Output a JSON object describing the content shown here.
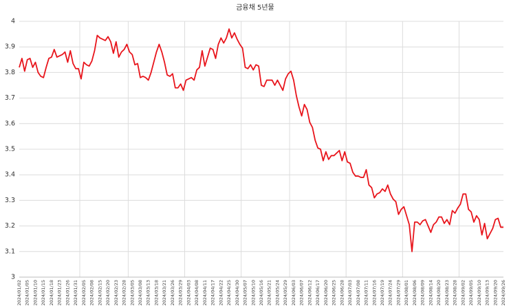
{
  "chart_data": {
    "type": "line",
    "title": "금융채 5년물",
    "color": "#e8141b",
    "grid": true,
    "ylim": [
      3,
      4
    ],
    "yticks": [
      3,
      3.1,
      3.2,
      3.3,
      3.4,
      3.5,
      3.6,
      3.7,
      3.8,
      3.9,
      4
    ],
    "categories": [
      "2024/01/02",
      null,
      null,
      "2024/01/05",
      null,
      null,
      "2024/01/10",
      null,
      null,
      "2024/01/15",
      null,
      null,
      "2024/01/18",
      null,
      null,
      "2024/01/23",
      null,
      null,
      "2024/01/26",
      null,
      null,
      "2024/01/31",
      null,
      null,
      "2024/02/05",
      null,
      null,
      "2024/02/08",
      null,
      null,
      "2024/02/15",
      null,
      null,
      "2024/02/20",
      null,
      null,
      "2024/02/23",
      null,
      null,
      "2024/02/28",
      null,
      null,
      "2024/03/05",
      null,
      null,
      "2024/03/08",
      null,
      null,
      "2024/03/13",
      null,
      null,
      "2024/03/18",
      null,
      null,
      "2024/03/21",
      null,
      null,
      "2024/03/26",
      null,
      null,
      "2024/03/29",
      null,
      null,
      "2024/04/03",
      null,
      null,
      "2024/04/08",
      null,
      null,
      "2024/04/11",
      null,
      null,
      "2024/04/17",
      null,
      null,
      "2024/04/22",
      null,
      null,
      "2024/04/25",
      null,
      null,
      "2024/04/30",
      null,
      null,
      "2024/05/07",
      null,
      null,
      "2024/05/10",
      null,
      null,
      "2024/05/16",
      null,
      null,
      "2024/05/21",
      null,
      null,
      "2024/05/24",
      null,
      null,
      "2024/05/29",
      null,
      null,
      "2024/06/03",
      null,
      null,
      "2024/06/07",
      null,
      null,
      "2024/06/12",
      null,
      null,
      "2024/06/17",
      null,
      null,
      "2024/06/20",
      null,
      null,
      "2024/06/25",
      null,
      null,
      "2024/06/28",
      null,
      null,
      "2024/07/03",
      null,
      null,
      "2024/07/08",
      null,
      null,
      "2024/07/11",
      null,
      null,
      "2024/07/16",
      null,
      null,
      "2024/07/19",
      null,
      null,
      "2024/07/24",
      null,
      null,
      "2024/07/29",
      null,
      null,
      "2024/08/01",
      null,
      null,
      "2024/08/06",
      null,
      null,
      "2024/08/09",
      null,
      null,
      "2024/08/14",
      null,
      null,
      "2024/08/20",
      null,
      null,
      "2024/08/23",
      null,
      null,
      "2024/08/28",
      null,
      null,
      "2024/09/02",
      null,
      null,
      "2024/09/05",
      null,
      null,
      "2024/09/10",
      null,
      null,
      "2024/09/13",
      null,
      null,
      "2024/09/20",
      null,
      null,
      "2024/09/26"
    ],
    "values": [
      3.82,
      3.855,
      3.805,
      3.85,
      3.855,
      3.82,
      3.84,
      3.8,
      3.785,
      3.78,
      3.82,
      3.855,
      3.86,
      3.89,
      3.86,
      3.865,
      3.87,
      3.88,
      3.84,
      3.885,
      3.835,
      3.815,
      3.815,
      3.775,
      3.84,
      3.83,
      3.825,
      3.845,
      3.885,
      3.945,
      3.935,
      3.93,
      3.925,
      3.94,
      3.92,
      3.875,
      3.92,
      3.86,
      3.88,
      3.89,
      3.91,
      3.88,
      3.87,
      3.83,
      3.835,
      3.78,
      3.785,
      3.78,
      3.77,
      3.8,
      3.84,
      3.88,
      3.91,
      3.88,
      3.84,
      3.79,
      3.785,
      3.795,
      3.74,
      3.74,
      3.755,
      3.73,
      3.77,
      3.775,
      3.78,
      3.77,
      3.81,
      3.82,
      3.885,
      3.825,
      3.86,
      3.895,
      3.89,
      3.855,
      3.91,
      3.935,
      3.915,
      3.935,
      3.97,
      3.935,
      3.955,
      3.93,
      3.91,
      3.895,
      3.82,
      3.815,
      3.83,
      3.81,
      3.83,
      3.825,
      3.75,
      3.745,
      3.77,
      3.77,
      3.77,
      3.75,
      3.77,
      3.75,
      3.73,
      3.775,
      3.795,
      3.805,
      3.77,
      3.71,
      3.665,
      3.63,
      3.675,
      3.655,
      3.605,
      3.585,
      3.535,
      3.505,
      3.5,
      3.455,
      3.49,
      3.46,
      3.475,
      3.475,
      3.485,
      3.495,
      3.455,
      3.49,
      3.45,
      3.445,
      3.41,
      3.395,
      3.395,
      3.39,
      3.39,
      3.42,
      3.36,
      3.35,
      3.31,
      3.325,
      3.33,
      3.345,
      3.335,
      3.36,
      3.325,
      3.305,
      3.295,
      3.245,
      3.265,
      3.275,
      3.24,
      3.205,
      3.1,
      3.215,
      3.215,
      3.205,
      3.22,
      3.225,
      3.2,
      3.175,
      3.205,
      3.215,
      3.235,
      3.235,
      3.21,
      3.225,
      3.205,
      3.26,
      3.25,
      3.27,
      3.285,
      3.325,
      3.325,
      3.265,
      3.255,
      3.215,
      3.24,
      3.225,
      3.165,
      3.21,
      3.15,
      3.17,
      3.19,
      3.225,
      3.23,
      3.195,
      3.195
    ]
  }
}
